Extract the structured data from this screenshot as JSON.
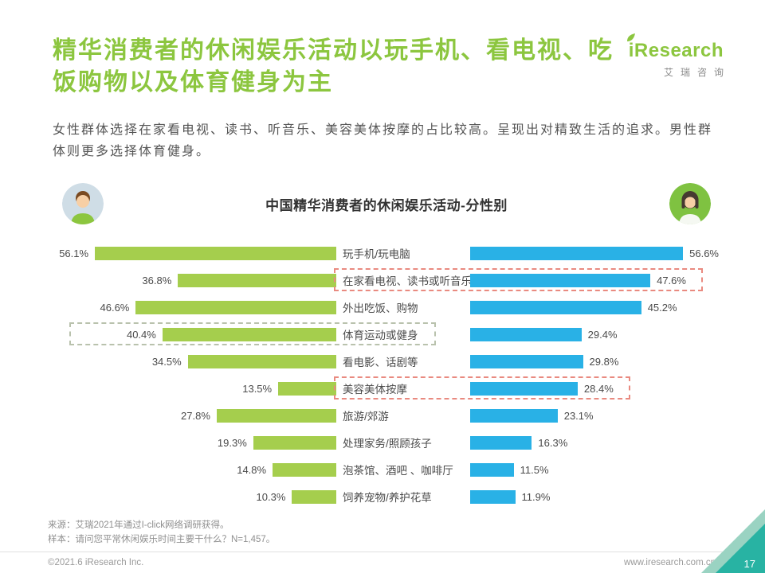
{
  "header": {
    "title_line1": "精华消费者的休闲娱乐活动以玩手机、看电视、吃",
    "title_line2": "饭购物以及体育健身为主",
    "logo_brand": "iResearch",
    "logo_sub": "艾瑞咨询"
  },
  "description": "女性群体选择在家看电视、读书、听音乐、美容美体按摩的占比较高。呈现出对精致生活的追求。男性群体则更多选择体育健身。",
  "chart_data": {
    "type": "bar",
    "orientation": "bidirectional-horizontal",
    "title": "中国精华消费者的休闲娱乐活动-分性别",
    "categories": [
      "玩手机/玩电脑",
      "在家看电视、读书或听音乐",
      "外出吃饭、购物",
      "体育运动或健身",
      "看电影、话剧等",
      "美容美体按摩",
      "旅游/郊游",
      "处理家务/照顾孩子",
      "泡茶馆、酒吧 、咖啡厅",
      "饲养宠物/养护花草"
    ],
    "series": [
      {
        "name": "male",
        "color": "#a5ce4d",
        "values": [
          56.1,
          36.8,
          46.6,
          40.4,
          34.5,
          13.5,
          27.8,
          19.3,
          14.8,
          10.3
        ]
      },
      {
        "name": "female",
        "color": "#29b1e6",
        "values": [
          56.6,
          47.6,
          45.2,
          29.4,
          29.8,
          28.4,
          23.1,
          16.3,
          11.5,
          11.9
        ]
      }
    ],
    "xlim": [
      0,
      60
    ],
    "value_suffix": "%",
    "legend_position": "none",
    "grid": false,
    "highlights": [
      {
        "row": 1,
        "side": "right"
      },
      {
        "row": 3,
        "side": "left"
      },
      {
        "row": 5,
        "side": "right"
      }
    ]
  },
  "footnotes": {
    "source": "来源：艾瑞2021年通过I-click网络调研获得。",
    "sample": "样本：请问您平常休闲娱乐时间主要干什么？N=1,457。"
  },
  "bottombar": {
    "copyright": "©2021.6 iResearch Inc.",
    "website": "www.iresearch.com.cn",
    "page_number": "17"
  }
}
